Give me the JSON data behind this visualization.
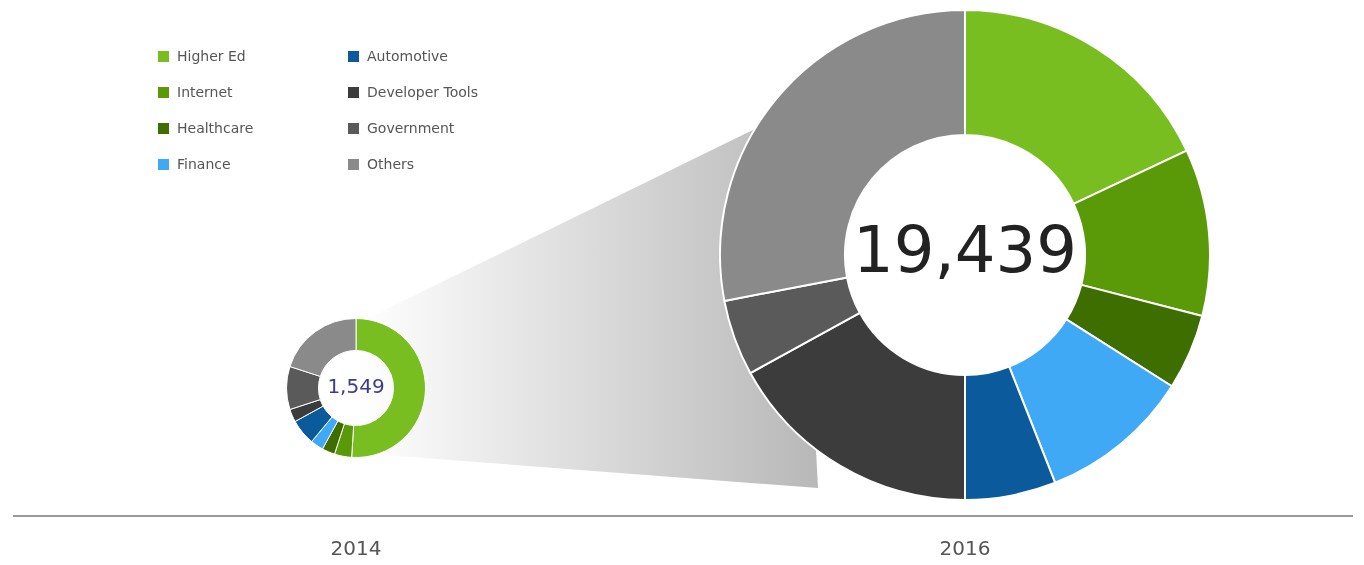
{
  "chart_data": {
    "type": "donut",
    "categories": [
      "Higher Ed",
      "Internet",
      "Healthcare",
      "Finance",
      "Automotive",
      "Developer Tools",
      "Government",
      "Others"
    ],
    "colors": [
      "#78be20",
      "#5a9a08",
      "#3f6e00",
      "#3fa9f5",
      "#0a5a9c",
      "#3c3c3c",
      "#5a5a5a",
      "#8a8a8a"
    ],
    "legend": "top left",
    "series": [
      {
        "name": "2014",
        "values": [
          51,
          4,
          3,
          3,
          6,
          3,
          10,
          20
        ]
      },
      {
        "name": "2016",
        "values": [
          18,
          11,
          5,
          10,
          6,
          17,
          5,
          28
        ]
      }
    ],
    "annotations": [
      "1,549",
      "19,439"
    ]
  }
}
